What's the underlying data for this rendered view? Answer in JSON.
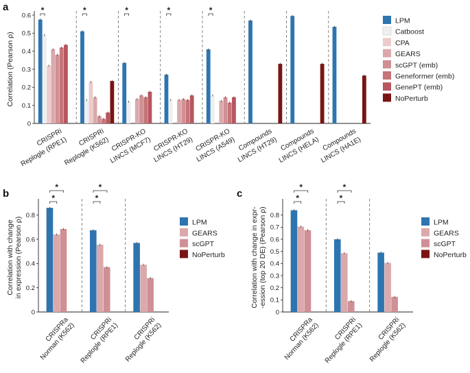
{
  "panels": [
    {
      "id": "a",
      "label": "a"
    },
    {
      "id": "b",
      "label": "b"
    },
    {
      "id": "c",
      "label": "c"
    }
  ],
  "colors": {
    "LPM": "#2e75b0",
    "Catboost": "#efefef",
    "CPA": "#ebcbcb",
    "GEARS": "#dba9ab",
    "scGPT (emb)": "#cf9095",
    "Geneformer (emb)": "#c57477",
    "GenePT (emb)": "#b85660",
    "NoPerturb": "#7a1414",
    "scGPT": "#cf9095"
  },
  "chart_data": [
    {
      "panel": "a",
      "type": "bar",
      "ylabel": "Correlation (Pearson ρ)",
      "ylim": [
        0,
        0.6
      ],
      "yticks": [
        0,
        0.1,
        0.2,
        0.3,
        0.4,
        0.5,
        0.6
      ],
      "legend_position": "right",
      "series_names": [
        "LPM",
        "Catboost",
        "CPA",
        "GEARS",
        "scGPT (emb)",
        "Geneformer (emb)",
        "GenePT (emb)",
        "NoPerturb"
      ],
      "categories": [
        [
          "CRISPRi",
          "Replogle (RPE1)"
        ],
        [
          "CRISPRi",
          "Replogle (K562)"
        ],
        [
          "CRISPR-KO",
          "LINCS (MCF7)"
        ],
        [
          "CRISPR-KO",
          "LINCS (HT29)"
        ],
        [
          "CRISPR-KO",
          "LINCS (A549)"
        ],
        [
          "Compounds",
          "LINCS (HT29)"
        ],
        [
          "Compounds",
          "LINCS (HELA)"
        ],
        [
          "Compounds",
          "LINCS (HA1E)"
        ]
      ],
      "values": [
        [
          0.575,
          0.49,
          0.32,
          0.41,
          0.38,
          0.42,
          0.435,
          null
        ],
        [
          0.51,
          0.13,
          0.23,
          0.145,
          0.04,
          0.025,
          0.06,
          0.235
        ],
        [
          0.335,
          0.12,
          null,
          0.135,
          0.155,
          0.145,
          0.175,
          null
        ],
        [
          0.27,
          0.13,
          null,
          0.13,
          0.135,
          0.13,
          0.155,
          null
        ],
        [
          0.41,
          0.155,
          null,
          0.125,
          0.145,
          0.115,
          0.145,
          null
        ],
        [
          0.57,
          null,
          null,
          null,
          null,
          null,
          null,
          0.33
        ],
        [
          0.595,
          null,
          null,
          null,
          null,
          null,
          null,
          0.33
        ],
        [
          0.535,
          null,
          null,
          null,
          null,
          null,
          null,
          0.265
        ]
      ],
      "significance": [
        "*",
        "*",
        "*",
        "*",
        "*"
      ]
    },
    {
      "panel": "b",
      "type": "bar",
      "ylabel": [
        "Correlation with change",
        "in expression (Pearson ρ)"
      ],
      "ylim": [
        0,
        0.9
      ],
      "yticks": [
        0,
        0.2,
        0.4,
        0.6,
        0.8
      ],
      "legend_position": "right",
      "series_names": [
        "LPM",
        "GEARS",
        "scGPT",
        "NoPerturb"
      ],
      "categories": [
        [
          "CRISPRa",
          "Norman (K562)"
        ],
        [
          "CRISPRi",
          "Replogle (RPE1)"
        ],
        [
          "CRISPRi",
          "Replogle (K562)"
        ]
      ],
      "values": [
        [
          0.86,
          0.64,
          0.685,
          0
        ],
        [
          0.675,
          0.555,
          0.37,
          0
        ],
        [
          0.57,
          0.39,
          0.28,
          0
        ]
      ],
      "significance": [
        "*",
        "*"
      ]
    },
    {
      "panel": "c",
      "type": "bar",
      "ylabel": [
        "Correlation with change in expr-",
        "-ession (top 20 DE) (Pearson ρ)"
      ],
      "ylim": [
        0,
        0.9
      ],
      "yticks": [
        0,
        0.1,
        0.2,
        0.3,
        0.4,
        0.5,
        0.6,
        0.7,
        0.8
      ],
      "legend_position": "right",
      "series_names": [
        "LPM",
        "GEARS",
        "scGPT",
        "NoPerturb"
      ],
      "categories": [
        [
          "CRISPRa",
          "Norman (K562)"
        ],
        [
          "CRISPRi",
          "Replogle (RPE1)"
        ],
        [
          "CRISPRi",
          "Replogle (K562)"
        ]
      ],
      "values": [
        [
          0.84,
          0.705,
          0.675,
          0
        ],
        [
          0.6,
          0.485,
          0.09,
          0
        ],
        [
          0.49,
          0.405,
          0.125,
          0
        ]
      ],
      "significance": [
        "*",
        "*"
      ]
    }
  ]
}
